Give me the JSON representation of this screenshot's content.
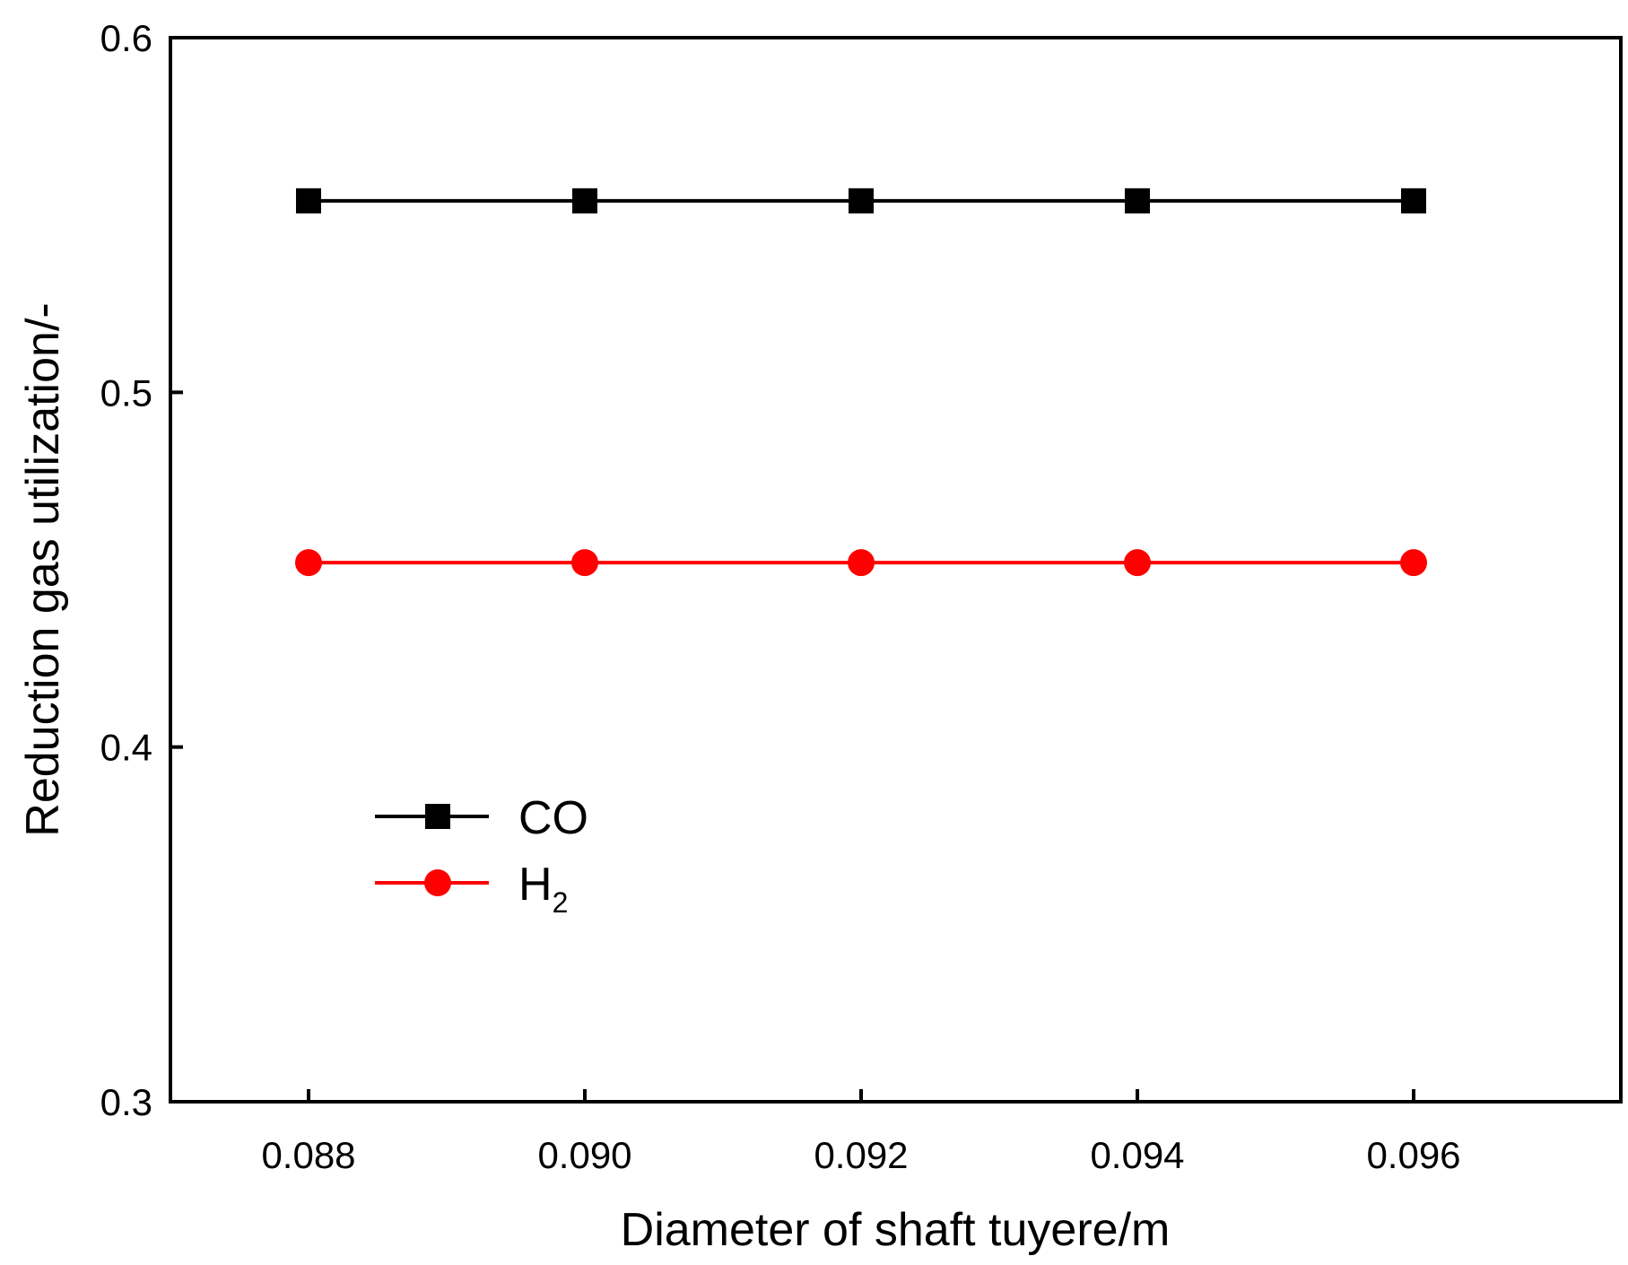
{
  "chart_data": {
    "type": "line",
    "title": "",
    "xlabel": "Diameter of shaft tuyere/m",
    "ylabel": "Reduction gas utilization/-",
    "x": [
      0.088,
      0.09,
      0.092,
      0.094,
      0.096
    ],
    "x_tick_labels": [
      "0.088",
      "0.090",
      "0.092",
      "0.094",
      "0.096"
    ],
    "xlim": [
      0.087,
      0.0975
    ],
    "ylim": [
      0.3,
      0.6
    ],
    "y_ticks": [
      0.3,
      0.4,
      0.5,
      0.6
    ],
    "y_tick_labels": [
      "0.3",
      "0.4",
      "0.5",
      "0.6"
    ],
    "grid": false,
    "legend_position": "lower-left",
    "series": [
      {
        "name": "CO",
        "label_main": "CO",
        "label_sub": "",
        "marker": "square",
        "color": "#000000",
        "values": [
          0.554,
          0.554,
          0.554,
          0.554,
          0.554
        ]
      },
      {
        "name": "H2",
        "label_main": "H",
        "label_sub": "2",
        "marker": "circle",
        "color": "#ff0000",
        "values": [
          0.452,
          0.452,
          0.452,
          0.452,
          0.452
        ]
      }
    ]
  }
}
